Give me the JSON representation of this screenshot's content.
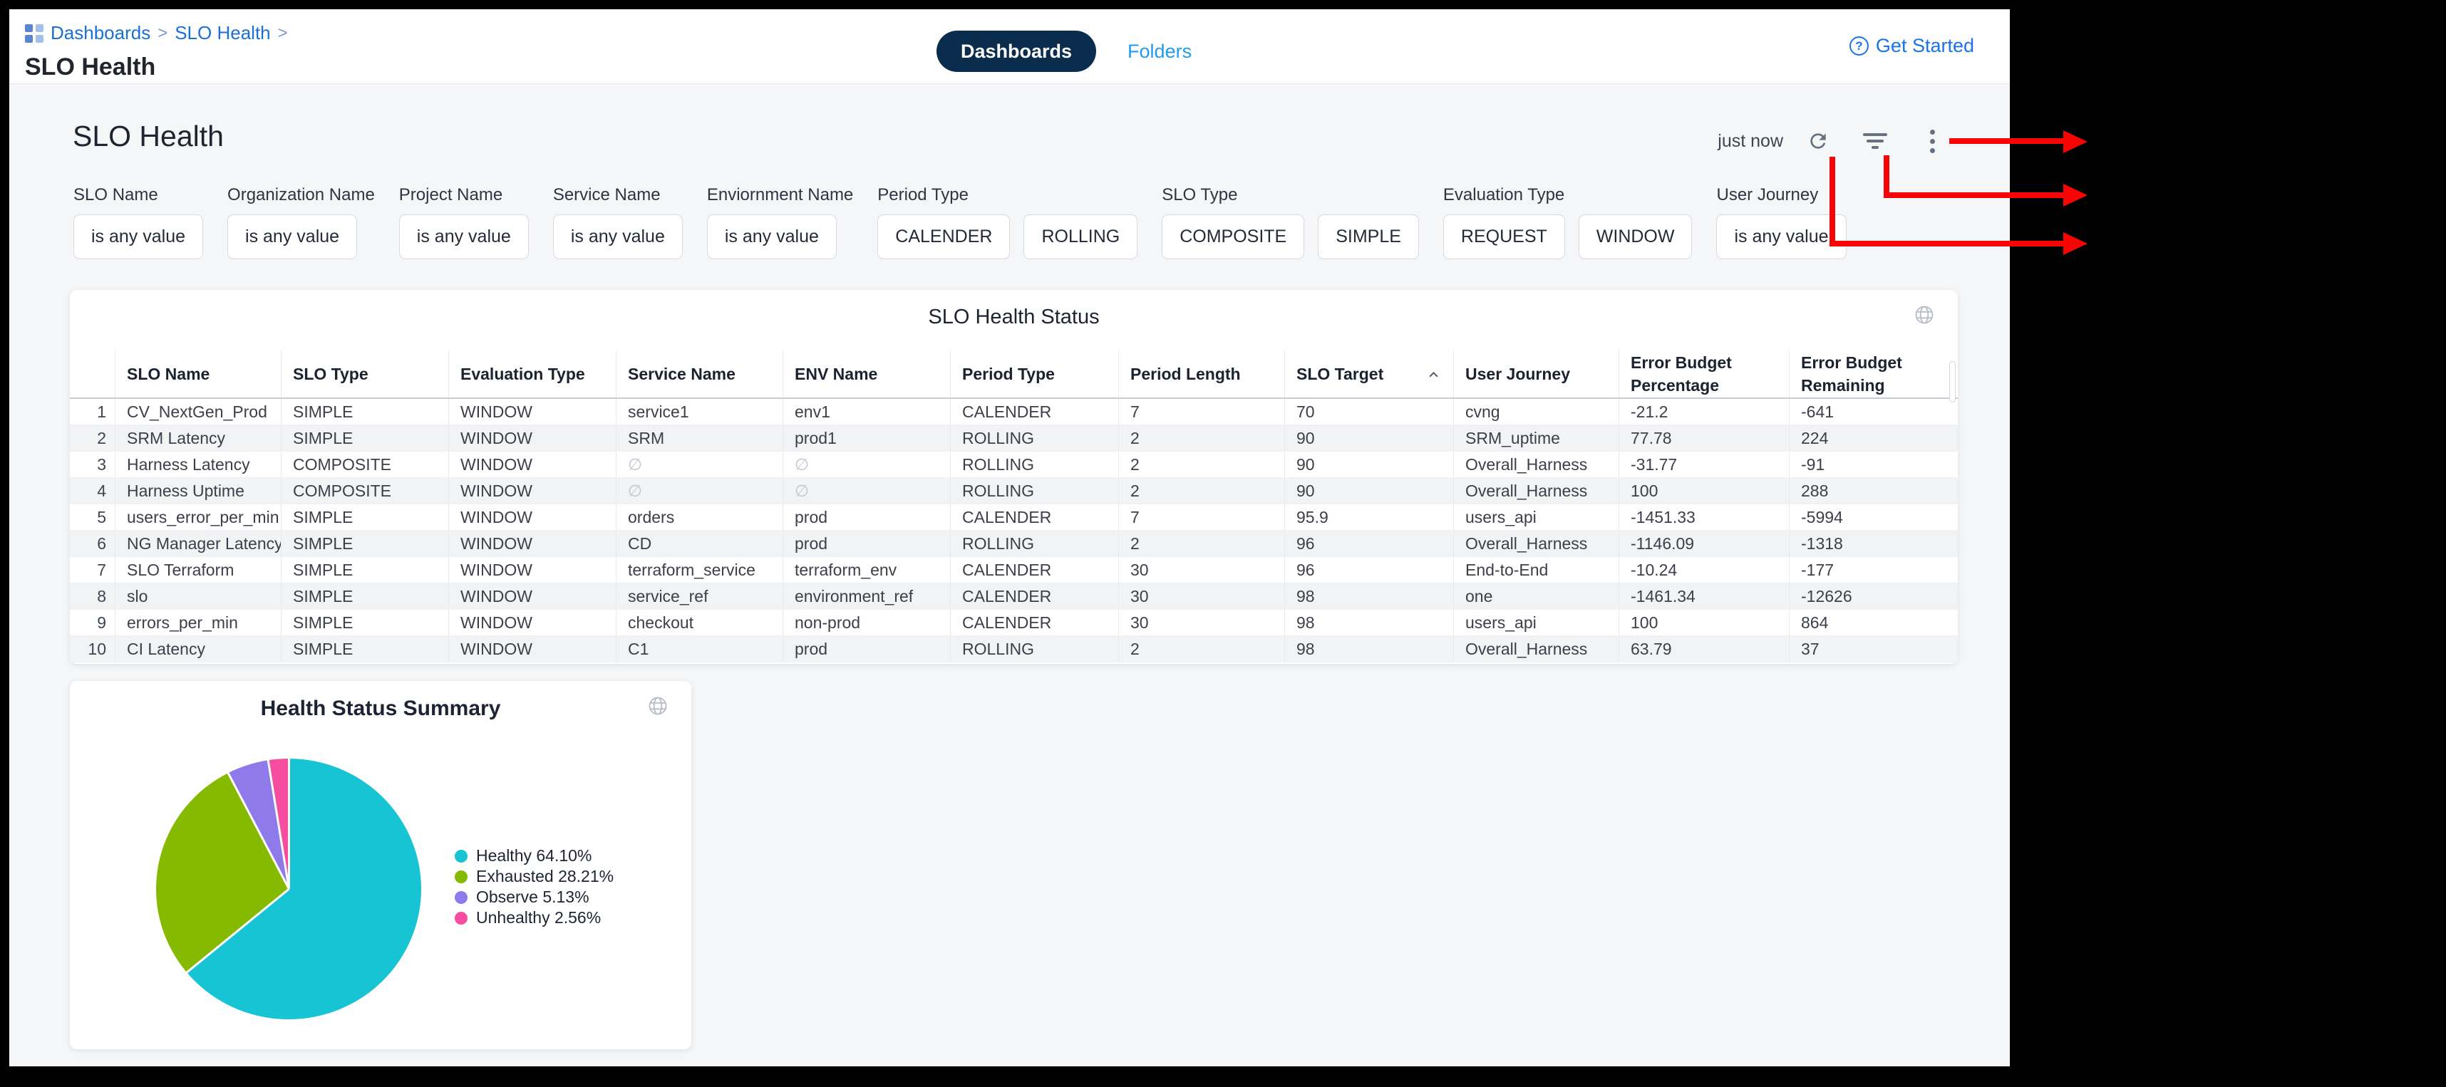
{
  "topbar": {
    "breadcrumb": {
      "links": [
        "Dashboards",
        "SLO Health"
      ],
      "separator": ">"
    },
    "page_title": "SLO Health",
    "tabs": [
      {
        "label": "Dashboards",
        "active": true
      },
      {
        "label": "Folders",
        "active": false
      }
    ],
    "get_started_label": "Get Started"
  },
  "dashboard": {
    "title": "SLO Health",
    "refresh_status": "just now"
  },
  "filters": [
    {
      "label": "SLO Name",
      "values": [
        "is any value"
      ]
    },
    {
      "label": "Organization Name",
      "values": [
        "is any value"
      ]
    },
    {
      "label": "Project Name",
      "values": [
        "is any value"
      ]
    },
    {
      "label": "Service Name",
      "values": [
        "is any value"
      ]
    },
    {
      "label": "Enviornment Name",
      "values": [
        "is any value"
      ]
    },
    {
      "label": "Period Type",
      "values": [
        "CALENDER",
        "ROLLING"
      ]
    },
    {
      "label": "SLO Type",
      "values": [
        "COMPOSITE",
        "SIMPLE"
      ]
    },
    {
      "label": "Evaluation Type",
      "values": [
        "REQUEST",
        "WINDOW"
      ]
    },
    {
      "label": "User Journey",
      "values": [
        "is any value"
      ]
    }
  ],
  "table": {
    "title": "SLO Health Status",
    "columns": [
      "SLO Name",
      "SLO Type",
      "Evaluation Type",
      "Service Name",
      "ENV Name",
      "Period Type",
      "Period Length",
      "SLO Target",
      "User Journey",
      "Error Budget Percentage",
      "Error Budget Remaining"
    ],
    "sorted_column": "SLO Target",
    "sort_direction": "asc",
    "rows": [
      [
        "CV_NextGen_Prod",
        "SIMPLE",
        "WINDOW",
        "service1",
        "env1",
        "CALENDER",
        "7",
        "70",
        "cvng",
        "-21.2",
        "-641"
      ],
      [
        "SRM Latency",
        "SIMPLE",
        "WINDOW",
        "SRM",
        "prod1",
        "ROLLING",
        "2",
        "90",
        "SRM_uptime",
        "77.78",
        "224"
      ],
      [
        "Harness Latency",
        "COMPOSITE",
        "WINDOW",
        "∅",
        "∅",
        "ROLLING",
        "2",
        "90",
        "Overall_Harness",
        "-31.77",
        "-91"
      ],
      [
        "Harness Uptime",
        "COMPOSITE",
        "WINDOW",
        "∅",
        "∅",
        "ROLLING",
        "2",
        "90",
        "Overall_Harness",
        "100",
        "288"
      ],
      [
        "users_error_per_min",
        "SIMPLE",
        "WINDOW",
        "orders",
        "prod",
        "CALENDER",
        "7",
        "95.9",
        "users_api",
        "-1451.33",
        "-5994"
      ],
      [
        "NG Manager Latency",
        "SIMPLE",
        "WINDOW",
        "CD",
        "prod",
        "ROLLING",
        "2",
        "96",
        "Overall_Harness",
        "-1146.09",
        "-1318"
      ],
      [
        "SLO Terraform",
        "SIMPLE",
        "WINDOW",
        "terraform_service",
        "terraform_env",
        "CALENDER",
        "30",
        "96",
        "End-to-End",
        "-10.24",
        "-177"
      ],
      [
        "slo",
        "SIMPLE",
        "WINDOW",
        "service_ref",
        "environment_ref",
        "CALENDER",
        "30",
        "98",
        "one",
        "-1461.34",
        "-12626"
      ],
      [
        "errors_per_min",
        "SIMPLE",
        "WINDOW",
        "checkout",
        "non-prod",
        "CALENDER",
        "30",
        "98",
        "users_api",
        "100",
        "864"
      ],
      [
        "CI Latency",
        "SIMPLE",
        "WINDOW",
        "C1",
        "prod",
        "ROLLING",
        "2",
        "98",
        "Overall_Harness",
        "63.79",
        "37"
      ]
    ]
  },
  "chart_data": {
    "type": "pie",
    "title": "Health Status Summary",
    "labels": [
      "Healthy",
      "Exhausted",
      "Observe",
      "Unhealthy"
    ],
    "values": [
      64.1,
      28.21,
      5.13,
      2.56
    ],
    "colors": [
      "#16c4d4",
      "#86ba00",
      "#8e7ae8",
      "#f74da0"
    ],
    "legend": [
      "Healthy 64.10%",
      "Exhausted 28.21%",
      "Observe 5.13%",
      "Unhealthy 2.56%"
    ],
    "legend_position": "right",
    "start_angle_deg": 0
  },
  "annotations": {
    "arrow_color": "#f70505",
    "arrows": [
      "points-to-kebab-menu",
      "points-to-filter-button",
      "points-to-refresh-button"
    ]
  }
}
